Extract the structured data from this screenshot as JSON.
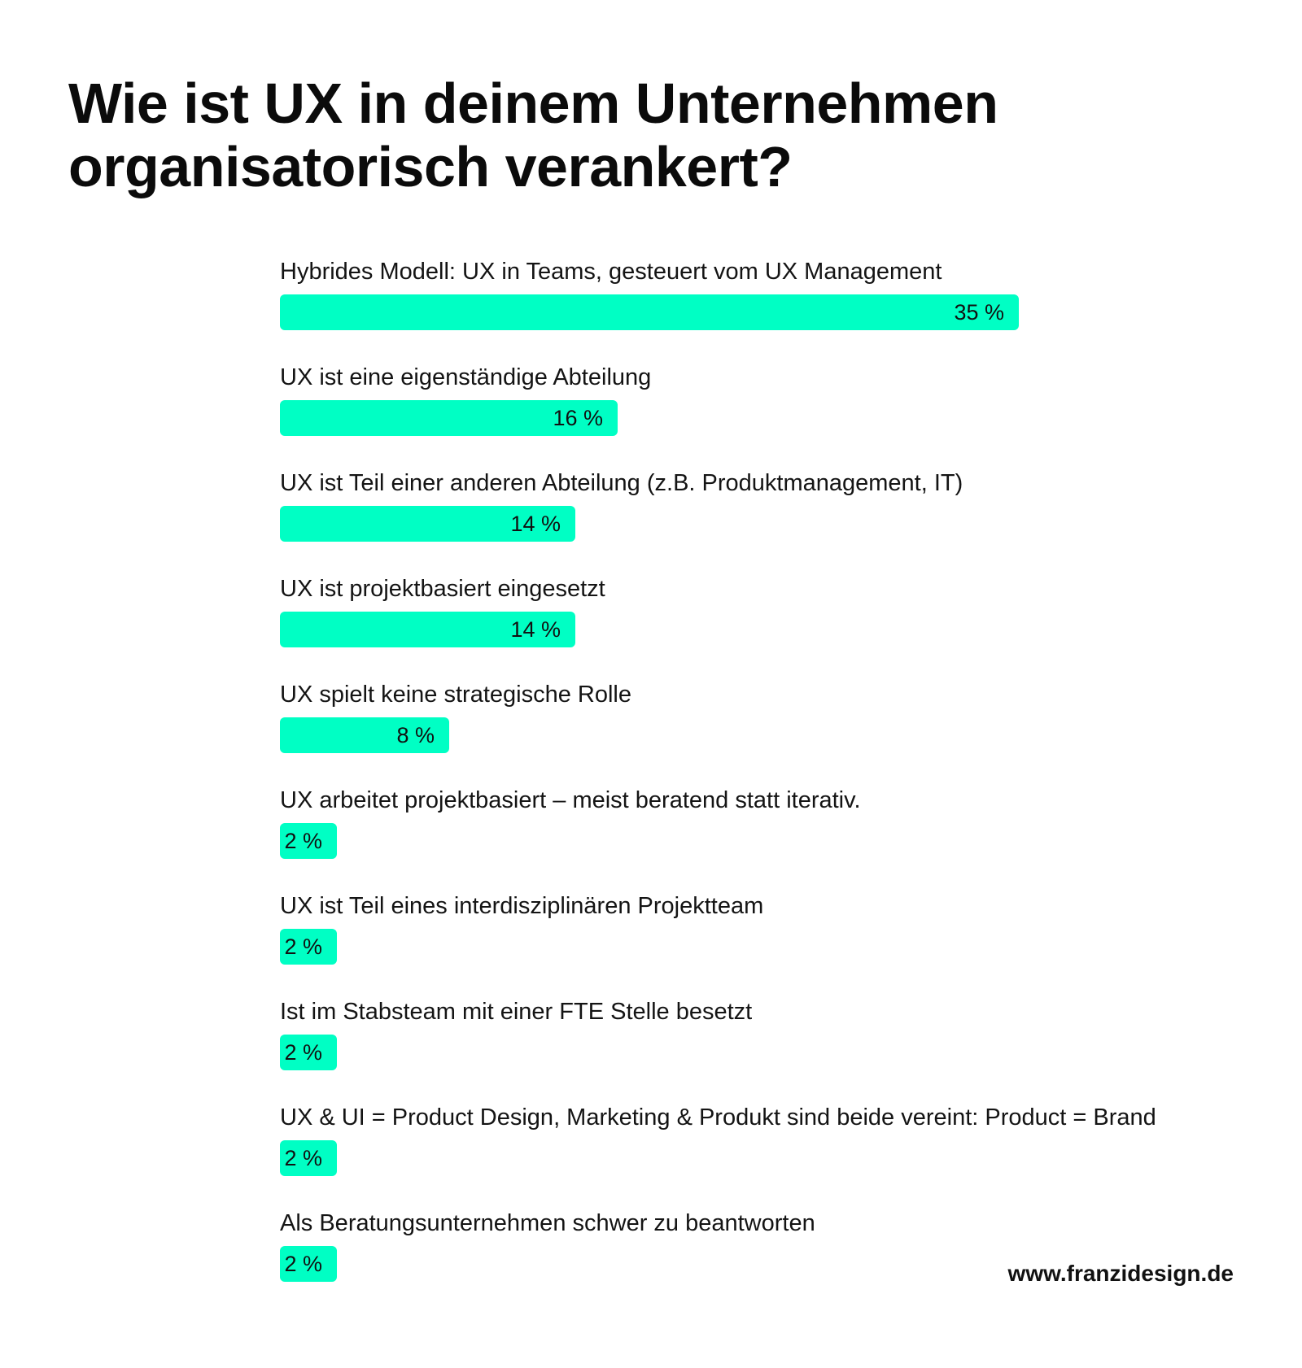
{
  "title": {
    "line1": "Wie ist UX in deinem Unternehmen",
    "line2": "organisatorisch verankert?"
  },
  "colors": {
    "bar": "#00FFC4",
    "text": "#111111",
    "background": "#FFFFFF"
  },
  "chart_data": {
    "type": "bar",
    "orientation": "horizontal",
    "unit": "%",
    "categories": [
      "Hybrides Modell: UX in Teams, gesteuert vom UX Management",
      "UX ist eine eigenständige Abteilung",
      "UX ist Teil einer anderen Abteilung (z.B. Produktmanagement, IT)",
      "UX ist projektbasiert eingesetzt",
      "UX spielt keine strategische Rolle",
      "UX arbeitet projektbasiert – meist beratend statt iterativ.",
      "UX ist Teil eines interdisziplinären Projektteam",
      "Ist im Stabsteam mit einer FTE Stelle besetzt",
      "UX & UI = Product Design, Marketing & Produkt sind beide vereint: Product = Brand",
      "Als Beratungsunternehmen schwer zu beantworten"
    ],
    "values": [
      35,
      16,
      14,
      14,
      8,
      2,
      2,
      2,
      2,
      2
    ],
    "value_labels": [
      "35 %",
      "16 %",
      "14 %",
      "14 %",
      "8 %",
      "2 %",
      "2 %",
      "2 %",
      "2 %",
      "2 %"
    ],
    "xlim": [
      0,
      35
    ],
    "grid": false,
    "legend": "none"
  },
  "footer": {
    "website": "www.franzidesign.de"
  }
}
